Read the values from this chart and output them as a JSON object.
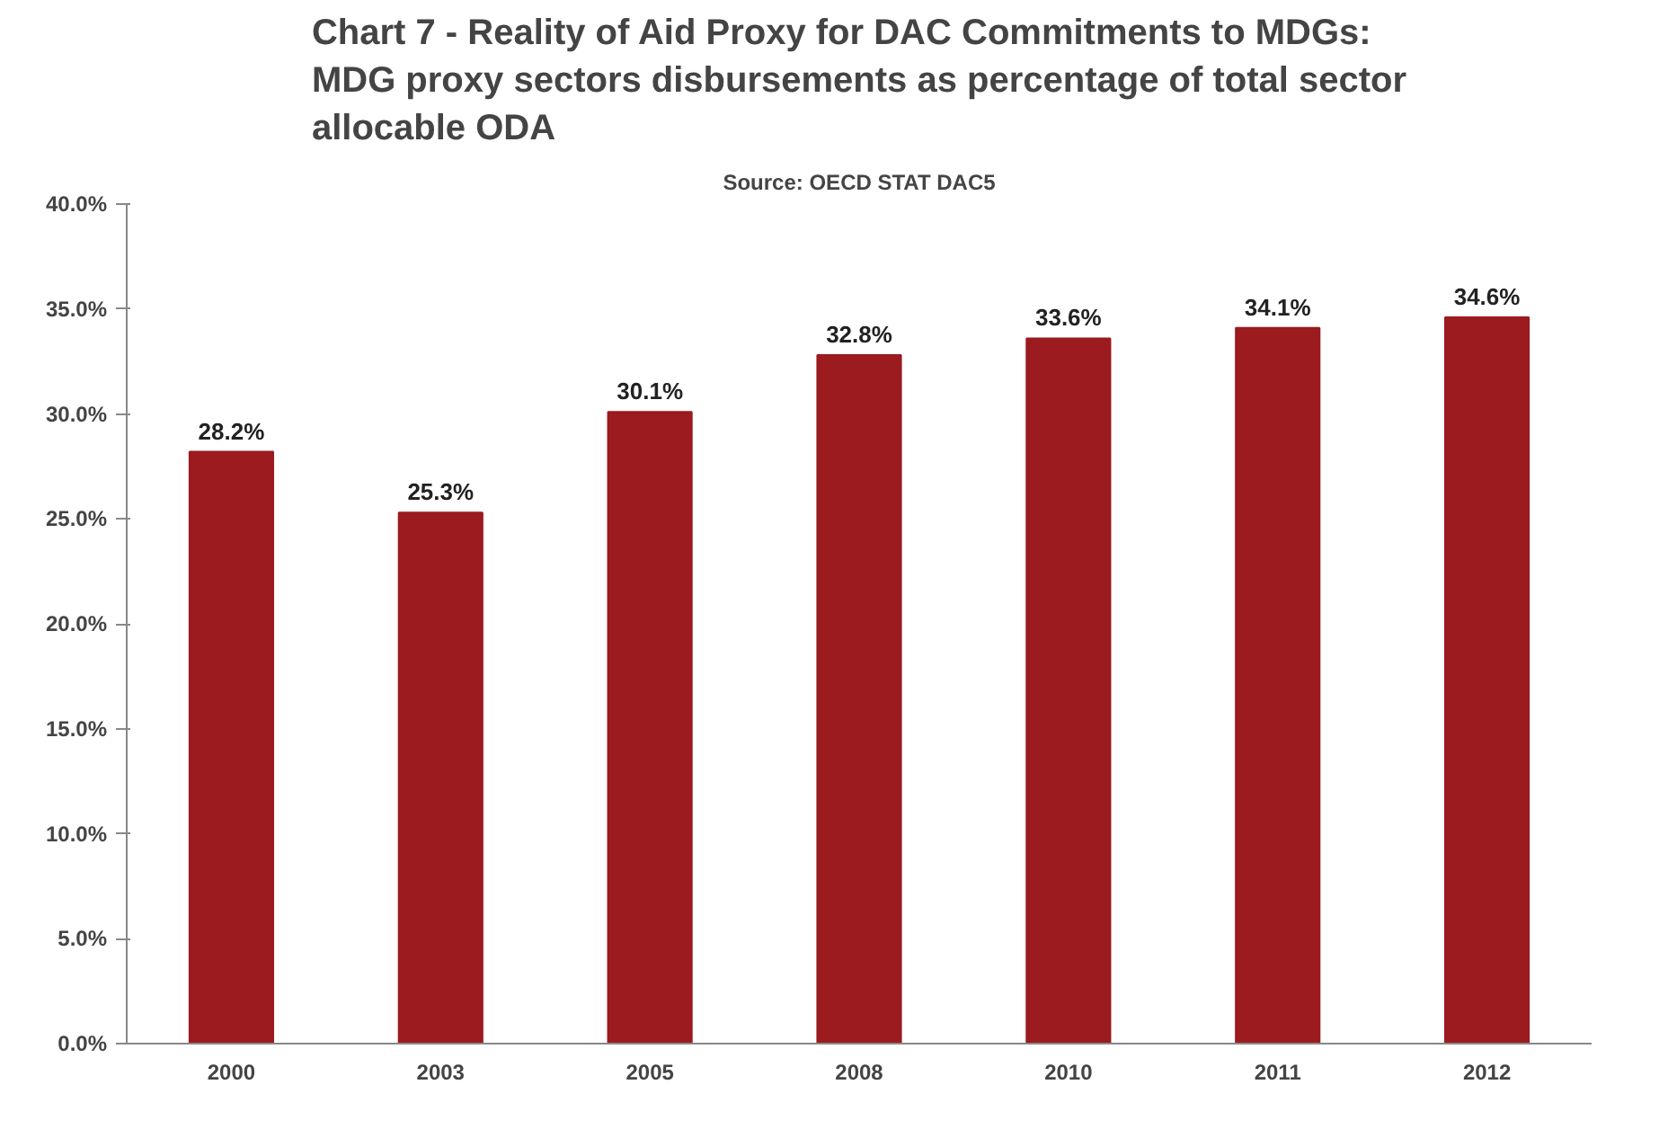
{
  "chart_data": {
    "type": "bar",
    "title": "Chart 7 - Reality of Aid Proxy for DAC Commitments to MDGs:\nMDG proxy sectors disbursements as percentage of total sector\nallocable ODA",
    "annotations": [
      "Source: OECD STAT DAC5"
    ],
    "categories": [
      "2000",
      "2003",
      "2005",
      "2008",
      "2010",
      "2011",
      "2012"
    ],
    "values": [
      28.2,
      25.3,
      30.1,
      32.8,
      33.6,
      34.1,
      34.6
    ],
    "value_labels": [
      "28.2%",
      "25.3%",
      "30.1%",
      "32.8%",
      "33.6%",
      "34.1%",
      "34.6%"
    ],
    "color": "#9b1b1f",
    "ylim": [
      0,
      40
    ],
    "yticks": [
      {
        "value": 0,
        "label": "0.0%"
      },
      {
        "value": 5,
        "label": "5.0%"
      },
      {
        "value": 10,
        "label": "10.0%"
      },
      {
        "value": 15,
        "label": "15.0%"
      },
      {
        "value": 20,
        "label": "20.0%"
      },
      {
        "value": 25,
        "label": "25.0%"
      },
      {
        "value": 30,
        "label": "30.0%"
      },
      {
        "value": 35,
        "label": "35.0%"
      },
      {
        "value": 40,
        "label": "40.0%"
      }
    ],
    "grid": false
  }
}
